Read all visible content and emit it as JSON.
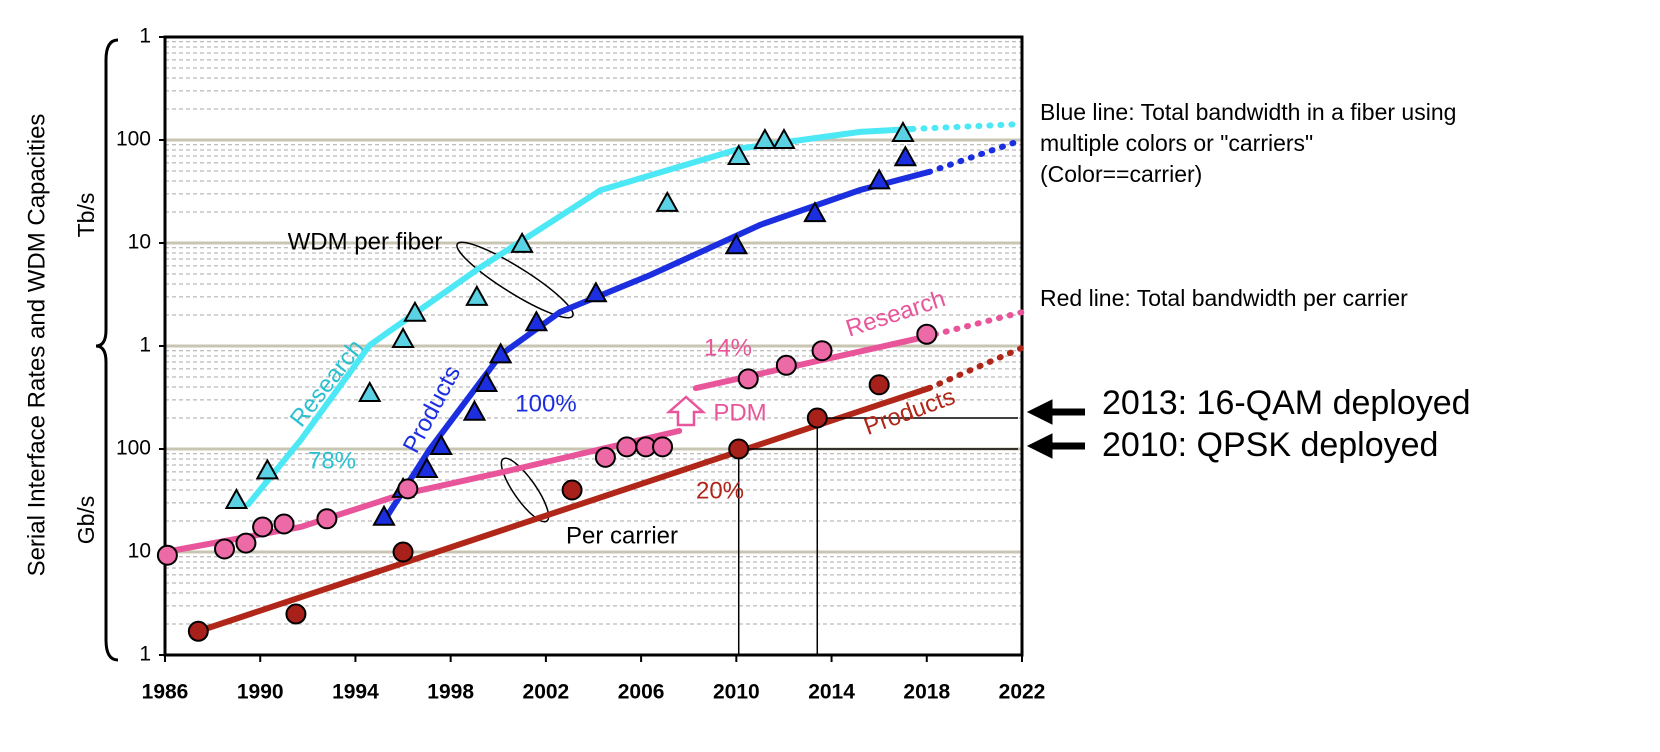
{
  "chart_data": {
    "type": "scatter",
    "ylabel": "Serial Interface Rates and WDM Capacities",
    "unit_labels": [
      "Tb/s",
      "Gb/s"
    ],
    "xlim": [
      1986,
      2022
    ],
    "xticks": [
      1986,
      1990,
      1994,
      1998,
      2002,
      2006,
      2010,
      2014,
      2018,
      2022
    ],
    "ylim": [
      1,
      1000000
    ],
    "log_y": true,
    "grid": true,
    "yticks": [
      1,
      10,
      100,
      {
        "value": 1000,
        "label": "1"
      },
      {
        "value": 10000,
        "label": "10"
      },
      {
        "value": 100000,
        "label": "100"
      },
      {
        "value": 1000000,
        "label": "1"
      }
    ],
    "series": [
      {
        "marker": "triangle",
        "color": "#5ad2e4",
        "x": [
          1989.0,
          1990.3,
          1994.6,
          1996.0,
          1996.5,
          1999.1,
          2001.0,
          2007.1,
          2010.1,
          2011.2,
          2012.0,
          2017.0
        ],
        "values": [
          32,
          62,
          350,
          1170,
          2100,
          3000,
          9800,
          24500,
          70000,
          100000,
          100000,
          117000
        ]
      },
      {
        "marker": "triangle",
        "color": "#1c2fe0",
        "x": [
          1995.2,
          1996.0,
          1997.0,
          1997.6,
          1999.0,
          1999.5,
          2000.1,
          2001.6,
          2004.1,
          2010.0,
          2013.3,
          2016.0,
          2017.1
        ],
        "values": [
          22,
          41,
          64,
          107,
          230,
          437,
          830,
          1700,
          3250,
          9500,
          19500,
          40600,
          68000
        ]
      },
      {
        "marker": "circle",
        "color": "#ec6aa5",
        "x": [
          1986.1,
          1988.5,
          1989.4,
          1990.1,
          1991.0,
          1992.8,
          1996.2,
          2004.5,
          2005.4,
          2006.2,
          2006.9,
          2010.5,
          2012.1,
          2013.6,
          2018.0
        ],
        "values": [
          9.3,
          10.7,
          12.2,
          17.5,
          18.7,
          21,
          41,
          83,
          105,
          105,
          105,
          480,
          650,
          900,
          1300
        ]
      },
      {
        "marker": "circle",
        "color": "#a8201a",
        "x": [
          1987.4,
          1991.5,
          1996.0,
          2003.1,
          2010.1,
          2013.4,
          2016.0
        ],
        "values": [
          1.7,
          2.5,
          10,
          40,
          100,
          200,
          420
        ]
      }
    ],
    "trend_lines": [
      {
        "color": "#4de8f5",
        "style": "solid",
        "x": [
          1989.5,
          1991.7,
          1994.6,
          1999.2,
          2004.3,
          2010.2,
          2015.2,
          2017.4
        ],
        "values": [
          29,
          122,
          1020,
          5700,
          32600,
          83000,
          120000,
          128000
        ]
      },
      {
        "color": "#4de8f5",
        "style": "dotted",
        "x": [
          2017.4,
          2022
        ],
        "values": [
          128000,
          143000
        ]
      },
      {
        "color": "#1c2fe0",
        "style": "solid",
        "x": [
          1995.2,
          1997.1,
          2000.1,
          2002.6,
          2006.4,
          2011.0,
          2015.2,
          2018.1
        ],
        "values": [
          20,
          98,
          820,
          2140,
          4900,
          15000,
          32700,
          49000
        ]
      },
      {
        "color": "#1c2fe0",
        "style": "dotted",
        "x": [
          2018.1,
          2022
        ],
        "values": [
          49000,
          100000
        ]
      },
      {
        "color": "#e8559a",
        "style": "solid",
        "x": [
          1986,
          1991.7,
          1995.9,
          2000.5,
          2007.6,
          null,
          2008.3,
          2017.9
        ],
        "values": [
          10,
          17.5,
          36,
          62,
          150,
          null,
          390,
          1220
        ]
      },
      {
        "color": "#e8559a",
        "style": "dotted",
        "x": [
          2017.9,
          2022
        ],
        "values": [
          1220,
          2130
        ]
      },
      {
        "color": "#b02618",
        "style": "solid",
        "x": [
          1987.4,
          2018.1
        ],
        "values": [
          1.7,
          390
        ]
      },
      {
        "color": "#b02618",
        "style": "dotted",
        "x": [
          2018.1,
          2022
        ],
        "values": [
          390,
          960
        ]
      }
    ],
    "annotations": [
      "WDM per fiber",
      "Per carrier",
      "Research",
      "Products",
      "78%",
      "100%",
      "14%",
      "PDM",
      "Research",
      "Products",
      "20%"
    ],
    "notes": [
      "Blue line: Total bandwidth in a fiber using",
      "multiple colors or \"carriers\"",
      "(Color==carrier)",
      "Red line: Total bandwidth per carrier"
    ],
    "callouts": [
      "2013: 16-QAM deployed",
      "2010: QPSK deployed"
    ]
  }
}
